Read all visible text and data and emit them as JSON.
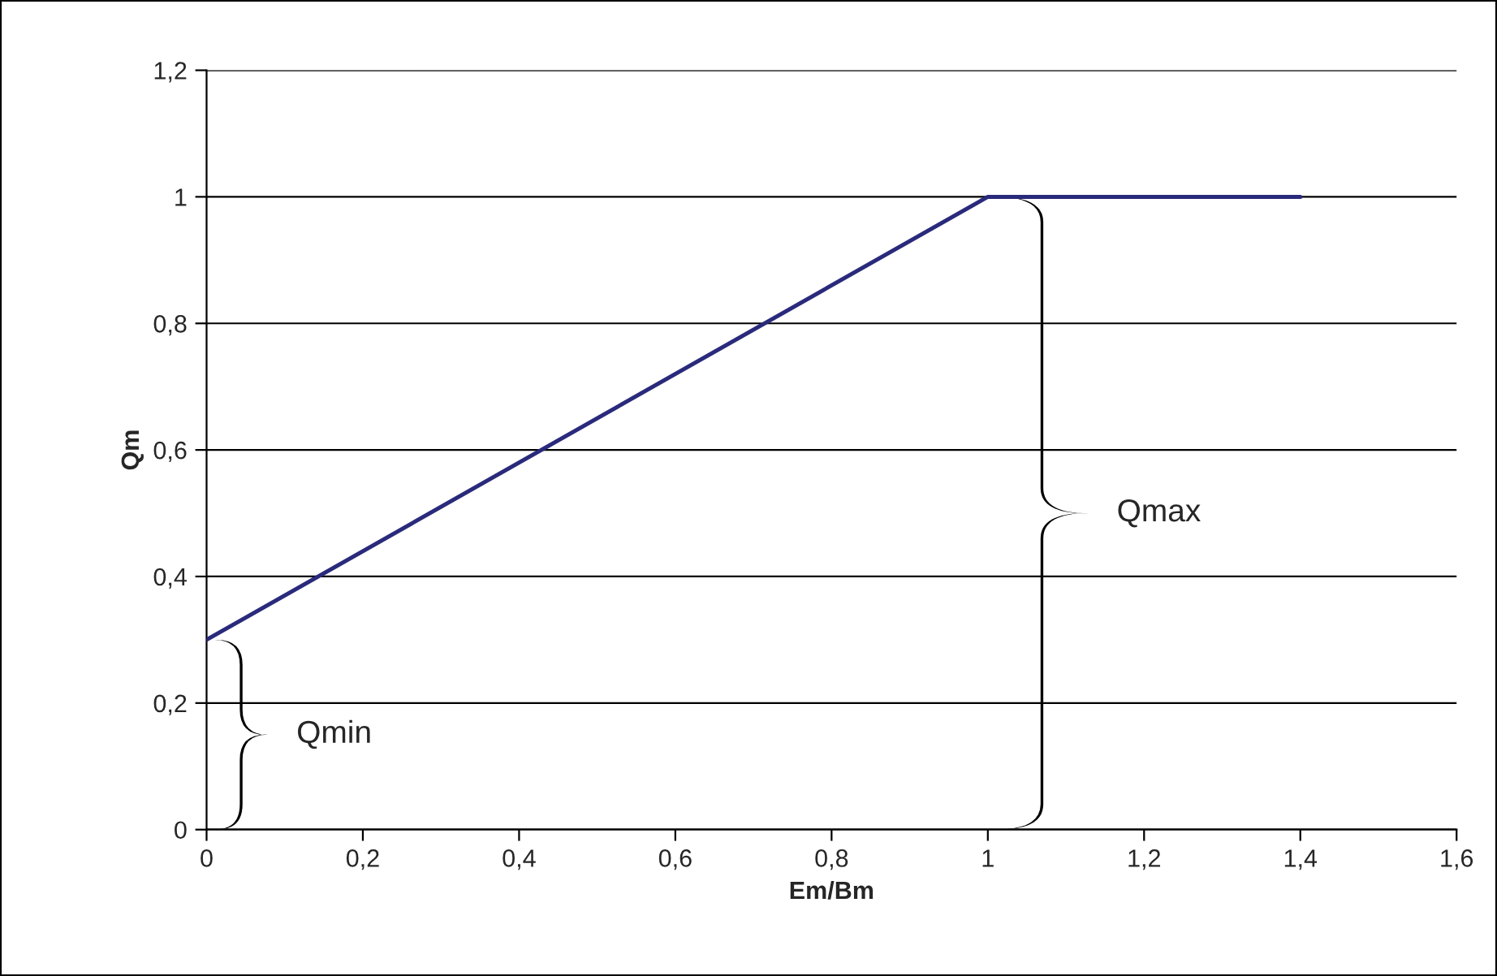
{
  "chart_data": {
    "type": "line",
    "xlabel": "Em/Bm",
    "ylabel": "Qm",
    "series": [
      {
        "x": [
          0,
          1,
          1.4
        ],
        "values": [
          0.3,
          1,
          1
        ],
        "color": "#2a2a7c"
      }
    ],
    "xlim": [
      0,
      1.6
    ],
    "ylim": [
      0,
      1.2
    ],
    "xticks": [
      0,
      {
        "value": 0.2,
        "label": "0,2"
      },
      {
        "value": 0.4,
        "label": "0,4"
      },
      {
        "value": 0.6,
        "label": "0,6"
      },
      {
        "value": 0.8,
        "label": "0,8"
      },
      1,
      {
        "value": 1.2,
        "label": "1,2"
      },
      {
        "value": 1.4,
        "label": "1,4"
      },
      {
        "value": 1.6,
        "label": "1,6"
      }
    ],
    "yticks": [
      0,
      {
        "value": 0.2,
        "label": "0,2"
      },
      {
        "value": 0.4,
        "label": "0,4"
      },
      {
        "value": 0.6,
        "label": "0,6"
      },
      {
        "value": 0.8,
        "label": "0,8"
      },
      1,
      {
        "value": 1.2,
        "label": "1,2"
      }
    ],
    "grid": "y",
    "legend": false,
    "marker": "none",
    "line_style": "solid",
    "annotations": [
      "Qmin",
      "Qmax"
    ]
  }
}
